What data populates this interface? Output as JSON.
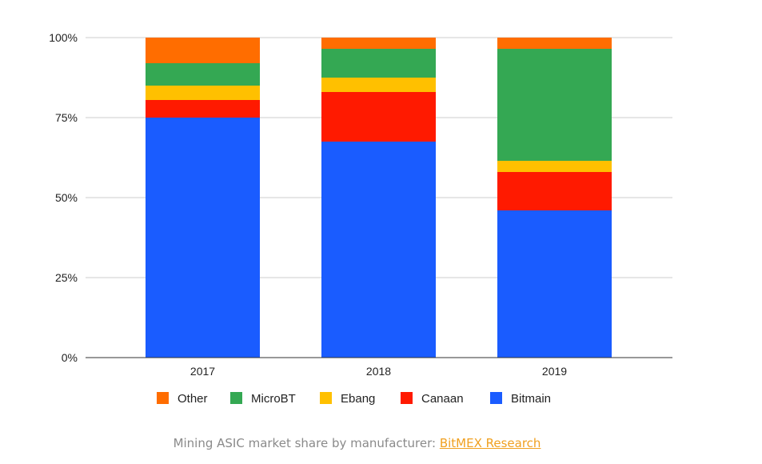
{
  "chart_data": {
    "type": "bar",
    "stacked": true,
    "categories": [
      "2017",
      "2018",
      "2019"
    ],
    "series": [
      {
        "name": "Bitmain",
        "color": "#1a5cff",
        "values": [
          75,
          67.5,
          46
        ]
      },
      {
        "name": "Canaan",
        "color": "#ff1a00",
        "values": [
          5.5,
          15.5,
          12
        ]
      },
      {
        "name": "Ebang",
        "color": "#ffc000",
        "values": [
          4.5,
          4.5,
          3.5
        ]
      },
      {
        "name": "MicroBT",
        "color": "#34a853",
        "values": [
          7,
          9,
          35
        ]
      },
      {
        "name": "Other",
        "color": "#ff6d00",
        "values": [
          8,
          3.5,
          3.5
        ]
      }
    ],
    "legend_order": [
      "Other",
      "MicroBT",
      "Ebang",
      "Canaan",
      "Bitmain"
    ],
    "yticks": [
      "0%",
      "25%",
      "50%",
      "75%",
      "100%"
    ],
    "ylim": [
      0,
      100
    ],
    "grid": true,
    "legend_position": "bottom"
  },
  "caption": {
    "text": "Mining ASIC market share by manufacturer: ",
    "link_text": "BitMEX Research"
  }
}
